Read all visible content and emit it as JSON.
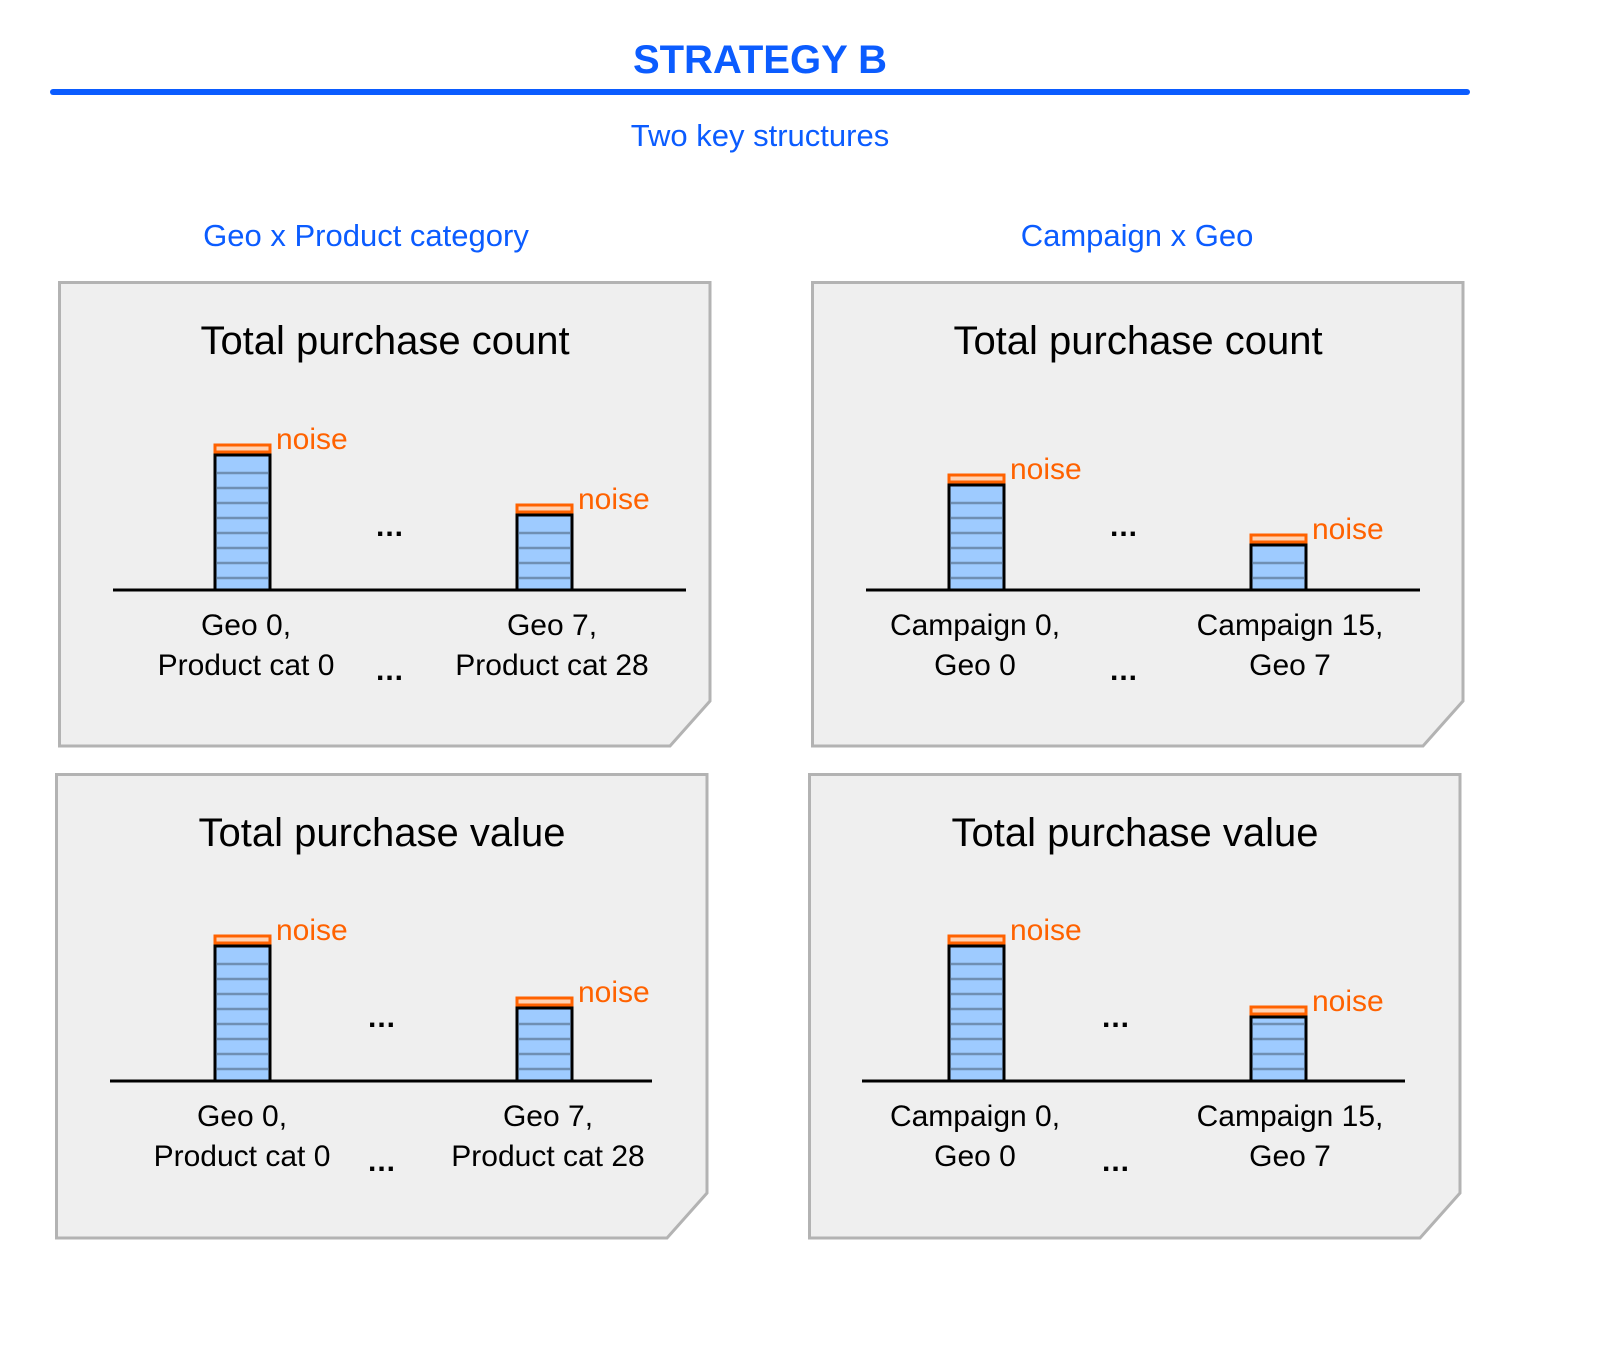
{
  "title": "STRATEGY B",
  "subtitle": "Two key structures",
  "columns": [
    {
      "heading": "Geo x Product category",
      "panels": [
        {
          "title": "Total purchase count",
          "noise_label": "noise",
          "ellipsis": "...",
          "labels": [
            [
              "Geo 0,",
              "Product cat 0"
            ],
            [
              "Geo 7,",
              "Product cat 28"
            ]
          ]
        },
        {
          "title": "Total purchase value",
          "noise_label": "noise",
          "ellipsis": "...",
          "labels": [
            [
              "Geo 0,",
              "Product cat 0"
            ],
            [
              "Geo 7,",
              "Product cat 28"
            ]
          ]
        }
      ]
    },
    {
      "heading": "Campaign x Geo",
      "panels": [
        {
          "title": "Total purchase count",
          "noise_label": "noise",
          "ellipsis": "...",
          "labels": [
            [
              "Campaign 0,",
              "Geo 0"
            ],
            [
              "Campaign 15,",
              "Geo 7"
            ]
          ]
        },
        {
          "title": "Total purchase value",
          "noise_label": "noise",
          "ellipsis": "...",
          "labels": [
            [
              "Campaign 0,",
              "Geo 0"
            ],
            [
              "Campaign 15,",
              "Geo 7"
            ]
          ]
        }
      ]
    }
  ],
  "colors": {
    "accent": "#0b5cff",
    "noise": "#ff6200",
    "bar_fill": "#9ecbff",
    "panel_fill": "#efefef",
    "panel_border": "#b3b3b3"
  }
}
